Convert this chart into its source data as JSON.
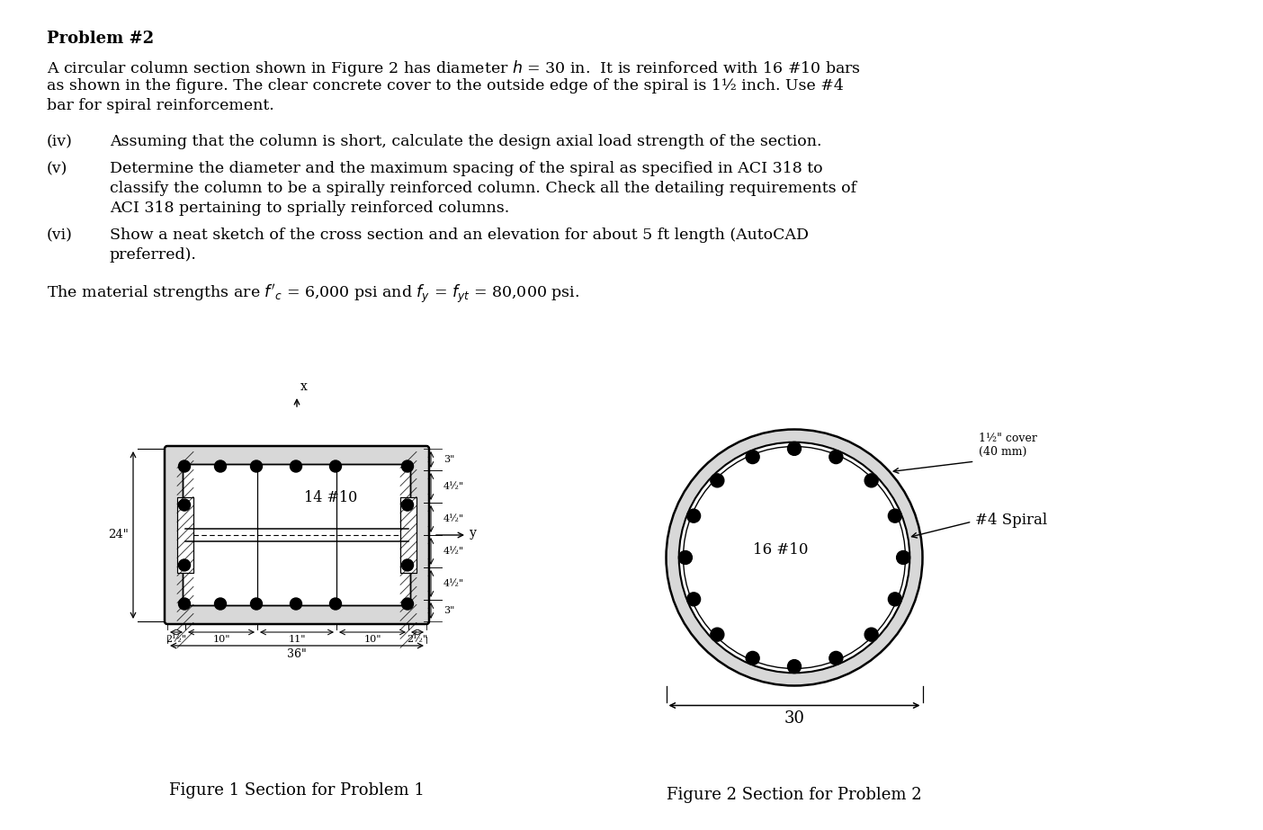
{
  "title": "Problem #2",
  "bg_color": "#ffffff",
  "text_color": "#000000",
  "fig1_label": "14 #10",
  "fig2_label": "16 #10",
  "fig2_spiral": "#4 Spiral",
  "fig2_cover": "1½\" cover\n(40 mm)",
  "fig2_dim": "30",
  "fig1_dim_24": "24\"",
  "fig1_caption": "Figure 1 Section for Problem 1",
  "fig2_caption": "Figure 2 Section for Problem 2",
  "para1_line1": "A circular column section shown in Figure 2 has diameter $h$ = 30 in.  It is reinforced with 16 #10 bars",
  "para1_line2": "as shown in the figure. The clear concrete cover to the outside edge of the spiral is 1½ inch. Use #4",
  "para1_line3": "bar for spiral reinforcement.",
  "item_iv_label": "(iv)",
  "item_iv_text": "Assuming that the column is short, calculate the design axial load strength of the section.",
  "item_v_label": "(v)",
  "item_v_line1": "Determine the diameter and the maximum spacing of the spiral as specified in ACI 318 to",
  "item_v_line2": "classify the column to be a spirally reinforced column. Check all the detailing requirements of",
  "item_v_line3": "ACI 318 pertaining to sprially reinforced columns.",
  "item_vi_label": "(vi)",
  "item_vi_line1": "Show a neat sketch of the cross section and an elevation for about 5 ft length (AutoCAD",
  "item_vi_line2": "preferred).",
  "material_line": "The material strengths are $f'_c$ = 6,000 psi and $f_y$ = $f_{yt}$ = 80,000 psi."
}
